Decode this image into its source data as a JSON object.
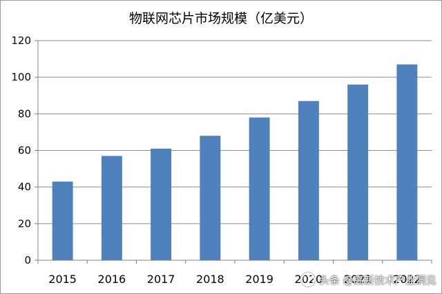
{
  "chart_data": {
    "type": "bar",
    "title": "物联网芯片市场规模（亿美元）",
    "categories": [
      "2015",
      "2016",
      "2017",
      "2018",
      "2019",
      "2020",
      "2021",
      "2022"
    ],
    "values": [
      43,
      57,
      61,
      68,
      78,
      87,
      96,
      107
    ],
    "ylim": [
      0,
      120
    ],
    "yticks": [
      0,
      20,
      40,
      60,
      80,
      100,
      120
    ],
    "grid": true,
    "bar_color": "#4f81bd"
  },
  "watermark": {
    "text": "头条 @高新技术产业洞见"
  }
}
